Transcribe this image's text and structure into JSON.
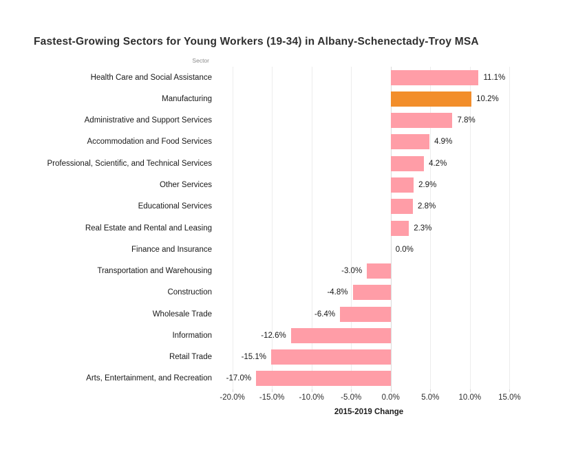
{
  "chart_data": {
    "type": "bar",
    "orientation": "horizontal",
    "title": "Fastest-Growing Sectors for Young Workers (19-34) in Albany-Schenectady-Troy MSA",
    "category_axis_label": "Sector",
    "xlabel": "2015-2019 Change",
    "categories": [
      "Health Care and Social Assistance",
      "Manufacturing",
      "Administrative and Support Services",
      "Accommodation and Food Services",
      "Professional, Scientific, and Technical Services",
      "Other Services",
      "Educational Services",
      "Real Estate and Rental and Leasing",
      "Finance and Insurance",
      "Transportation and Warehousing",
      "Construction",
      "Wholesale Trade",
      "Information",
      "Retail Trade",
      "Arts, Entertainment, and Recreation"
    ],
    "values": [
      11.1,
      10.2,
      7.8,
      4.9,
      4.2,
      2.9,
      2.8,
      2.3,
      0.0,
      -3.0,
      -4.8,
      -6.4,
      -12.6,
      -15.1,
      -17.0
    ],
    "value_labels": [
      "11.1%",
      "10.2%",
      "7.8%",
      "4.9%",
      "4.2%",
      "2.9%",
      "2.8%",
      "2.3%",
      "0.0%",
      "-3.0%",
      "-4.8%",
      "-6.4%",
      "-12.6%",
      "-15.1%",
      "-17.0%"
    ],
    "highlight_category": "Manufacturing",
    "colors": {
      "bar": "#FF9DA7",
      "highlight": "#F28E2B",
      "gridline": "#ECECEC",
      "zero_line": "#DADADA"
    },
    "xticks": {
      "values": [
        -20,
        -15,
        -10,
        -5,
        0,
        5,
        10,
        15
      ],
      "labels": [
        "-20.0%",
        "-15.0%",
        "-10.0%",
        "-5.0%",
        "0.0%",
        "5.0%",
        "10.0%",
        "15.0%"
      ]
    },
    "xlim": [
      -21.7,
      17.4
    ],
    "grid": "vertical",
    "legend": "none"
  }
}
